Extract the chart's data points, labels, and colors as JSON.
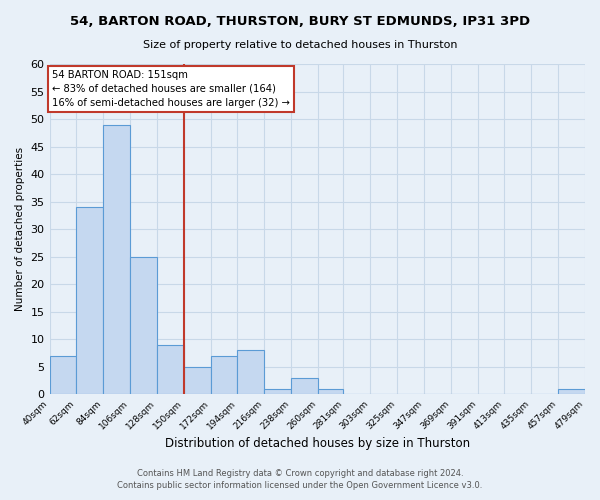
{
  "title": "54, BARTON ROAD, THURSTON, BURY ST EDMUNDS, IP31 3PD",
  "subtitle": "Size of property relative to detached houses in Thurston",
  "xlabel": "Distribution of detached houses by size in Thurston",
  "ylabel": "Number of detached properties",
  "bar_edges": [
    40,
    62,
    84,
    106,
    128,
    150,
    172,
    194,
    216,
    238,
    260,
    281,
    303,
    325,
    347,
    369,
    391,
    413,
    435,
    457,
    479
  ],
  "bar_heights": [
    7,
    34,
    49,
    25,
    9,
    5,
    7,
    8,
    1,
    3,
    1,
    0,
    0,
    0,
    0,
    0,
    0,
    0,
    0,
    1
  ],
  "bar_color": "#c5d8f0",
  "bar_edge_color": "#5b9bd5",
  "property_line_x": 150,
  "property_line_color": "#c0392b",
  "annotation_title": "54 BARTON ROAD: 151sqm",
  "annotation_line1": "← 83% of detached houses are smaller (164)",
  "annotation_line2": "16% of semi-detached houses are larger (32) →",
  "annotation_box_color": "#ffffff",
  "annotation_box_edge_color": "#c0392b",
  "ylim": [
    0,
    60
  ],
  "yticks": [
    0,
    5,
    10,
    15,
    20,
    25,
    30,
    35,
    40,
    45,
    50,
    55,
    60
  ],
  "tick_labels": [
    "40sqm",
    "62sqm",
    "84sqm",
    "106sqm",
    "128sqm",
    "150sqm",
    "172sqm",
    "194sqm",
    "216sqm",
    "238sqm",
    "260sqm",
    "281sqm",
    "303sqm",
    "325sqm",
    "347sqm",
    "369sqm",
    "391sqm",
    "413sqm",
    "435sqm",
    "457sqm",
    "479sqm"
  ],
  "footer1": "Contains HM Land Registry data © Crown copyright and database right 2024.",
  "footer2": "Contains public sector information licensed under the Open Government Licence v3.0.",
  "grid_color": "#c8d8e8",
  "background_color": "#e8f0f8"
}
